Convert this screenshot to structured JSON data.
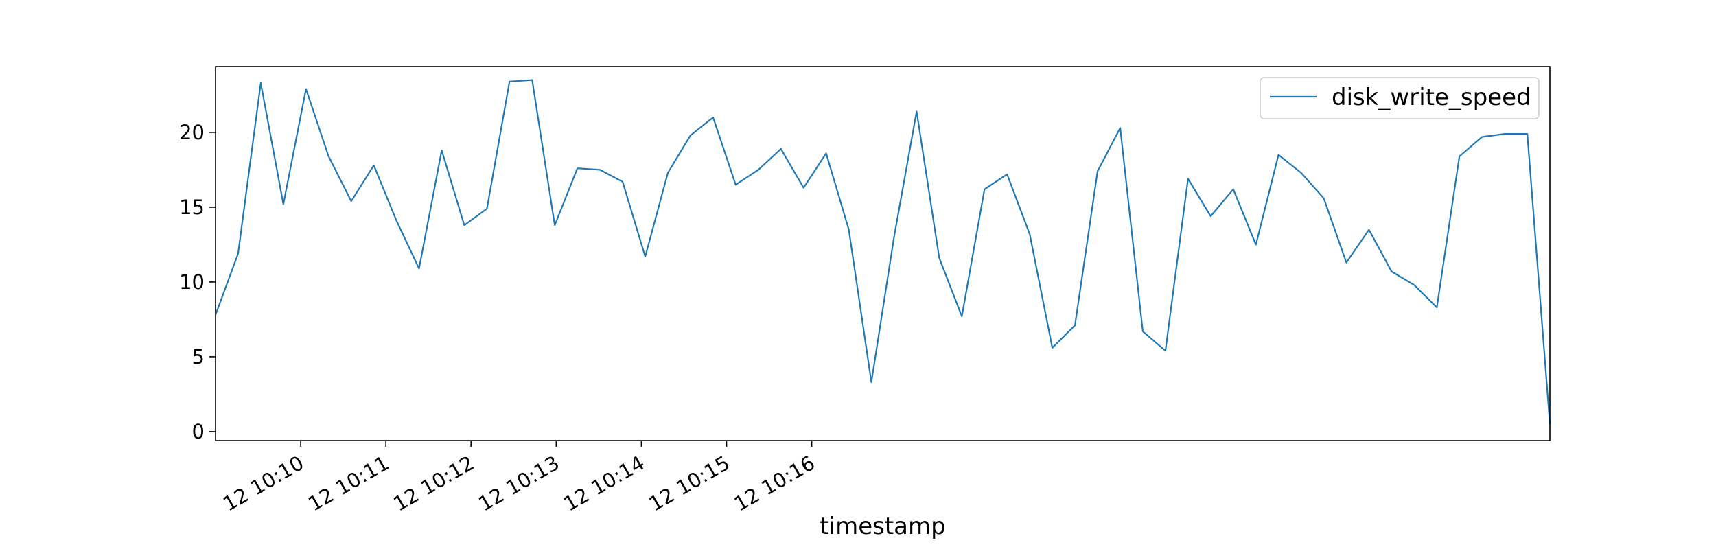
{
  "chart_data": {
    "type": "line",
    "xlabel": "timestamp",
    "ylabel": "",
    "x_unit": "seconds after 12 10:09:00",
    "x": [
      0,
      20,
      40,
      60,
      80,
      100,
      120,
      140,
      160,
      180,
      200,
      220,
      240,
      260,
      280,
      300,
      320,
      340,
      360,
      380,
      400,
      420,
      440,
      460,
      480,
      500,
      520,
      540,
      560,
      580,
      600,
      620,
      640,
      660,
      680,
      700,
      720,
      740,
      760,
      780,
      800,
      820,
      840,
      860,
      880,
      900,
      920,
      940,
      960,
      980,
      1000,
      1020,
      1040,
      1060,
      1080,
      1100,
      1120,
      1140,
      1160,
      1180
    ],
    "series": [
      {
        "name": "disk_write_speed",
        "color": "#1f77b4",
        "values": [
          7.8,
          11.9,
          23.3,
          15.2,
          22.9,
          18.4,
          15.4,
          17.8,
          14.1,
          10.9,
          18.8,
          13.8,
          14.9,
          23.4,
          23.5,
          13.8,
          17.6,
          17.5,
          16.7,
          11.7,
          17.3,
          19.8,
          21.0,
          16.5,
          17.5,
          18.9,
          16.3,
          18.6,
          13.5,
          3.3,
          13.0,
          21.4,
          11.6,
          7.7,
          16.2,
          17.2,
          13.2,
          5.6,
          7.1,
          17.4,
          20.3,
          6.7,
          5.4,
          16.9,
          14.4,
          16.2,
          12.5,
          18.5,
          17.3,
          15.6,
          11.3,
          13.5,
          10.7,
          9.8,
          8.3,
          18.4,
          19.7,
          19.9,
          19.9,
          0.5
        ]
      }
    ],
    "ylim": [
      -0.6,
      24.4
    ],
    "yticks": [
      0,
      5,
      10,
      15,
      20
    ],
    "xticks": [
      {
        "t": 60,
        "label": "12 10:10"
      },
      {
        "t": 120,
        "label": "12 10:11"
      },
      {
        "t": 180,
        "label": "12 10:12"
      },
      {
        "t": 240,
        "label": "12 10:13"
      },
      {
        "t": 300,
        "label": "12 10:14"
      },
      {
        "t": 360,
        "label": "12 10:15"
      },
      {
        "t": 420,
        "label": "12 10:16"
      }
    ],
    "grid": false,
    "legend_position": "top-right"
  }
}
